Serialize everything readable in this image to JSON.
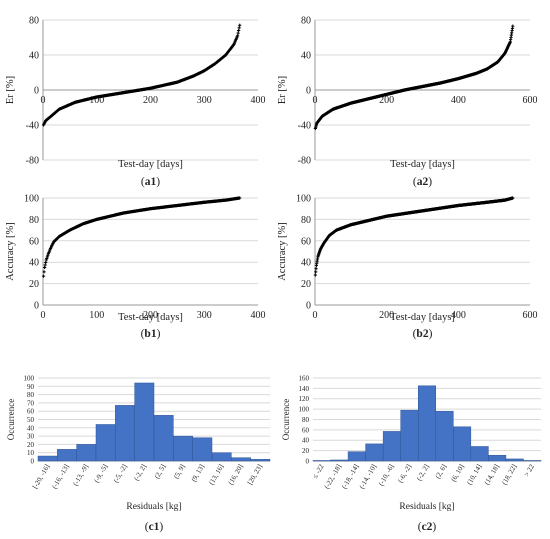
{
  "chart_data": [
    {
      "id": "a1",
      "type": "scatter",
      "panel_label": "(a1)",
      "xlabel": "Test-day [days]",
      "ylabel": "Er  [%]",
      "xlim": [
        0,
        400
      ],
      "ylim": [
        -80,
        80
      ],
      "xticks": [
        "0",
        "100",
        "200",
        "300",
        "400"
      ],
      "yticks": [
        "-80",
        "-40",
        "0",
        "40",
        "80"
      ],
      "grid": "horizontal",
      "marker": "+",
      "n_points": 366,
      "curve": [
        [
          1,
          -40
        ],
        [
          5,
          -35
        ],
        [
          15,
          -30
        ],
        [
          30,
          -22
        ],
        [
          60,
          -14
        ],
        [
          100,
          -8
        ],
        [
          150,
          -3
        ],
        [
          200,
          2
        ],
        [
          250,
          9
        ],
        [
          280,
          16
        ],
        [
          300,
          22
        ],
        [
          320,
          30
        ],
        [
          340,
          40
        ],
        [
          355,
          52
        ],
        [
          362,
          62
        ],
        [
          366,
          74
        ]
      ]
    },
    {
      "id": "a2",
      "type": "scatter",
      "panel_label": "(a2)",
      "xlabel": "Test-day [days]",
      "ylabel": "Er  [%]",
      "xlim": [
        0,
        600
      ],
      "ylim": [
        -80,
        80
      ],
      "xticks": [
        "0",
        "200",
        "400",
        "600"
      ],
      "yticks": [
        "-80",
        "-40",
        "0",
        "40",
        "80"
      ],
      "grid": "horizontal",
      "marker": "+",
      "n_points": 552,
      "curve": [
        [
          1,
          -44
        ],
        [
          5,
          -38
        ],
        [
          20,
          -30
        ],
        [
          50,
          -22
        ],
        [
          100,
          -15
        ],
        [
          150,
          -10
        ],
        [
          200,
          -5
        ],
        [
          250,
          0
        ],
        [
          300,
          4
        ],
        [
          350,
          8
        ],
        [
          400,
          13
        ],
        [
          450,
          19
        ],
        [
          480,
          24
        ],
        [
          510,
          32
        ],
        [
          530,
          42
        ],
        [
          545,
          55
        ],
        [
          552,
          73
        ]
      ]
    },
    {
      "id": "b1",
      "type": "scatter",
      "panel_label": "(b1)",
      "xlabel": "Test-day [days]",
      "ylabel": "Accuracy [%]",
      "xlim": [
        0,
        400
      ],
      "ylim": [
        0,
        100
      ],
      "xticks": [
        "0",
        "100",
        "200",
        "300",
        "400"
      ],
      "yticks": [
        "0",
        "20",
        "40",
        "60",
        "80",
        "100"
      ],
      "grid": "horizontal",
      "marker": "+",
      "n_points": 366,
      "curve": [
        [
          1,
          27
        ],
        [
          3,
          35
        ],
        [
          6,
          42
        ],
        [
          10,
          48
        ],
        [
          15,
          54
        ],
        [
          20,
          59
        ],
        [
          30,
          64
        ],
        [
          50,
          70
        ],
        [
          75,
          76
        ],
        [
          100,
          80
        ],
        [
          150,
          86
        ],
        [
          200,
          90
        ],
        [
          250,
          93
        ],
        [
          300,
          96
        ],
        [
          340,
          98
        ],
        [
          366,
          100
        ]
      ]
    },
    {
      "id": "b2",
      "type": "scatter",
      "panel_label": "(b2)",
      "xlabel": "Test-day [days]",
      "ylabel": "Accuracy [%]",
      "xlim": [
        0,
        600
      ],
      "ylim": [
        0,
        100
      ],
      "xticks": [
        "0",
        "200",
        "400",
        "600"
      ],
      "yticks": [
        "0",
        "20",
        "40",
        "60",
        "80",
        "100"
      ],
      "grid": "horizontal",
      "marker": "+",
      "n_points": 552,
      "curve": [
        [
          1,
          28
        ],
        [
          4,
          37
        ],
        [
          8,
          45
        ],
        [
          15,
          52
        ],
        [
          25,
          58
        ],
        [
          40,
          65
        ],
        [
          60,
          70
        ],
        [
          100,
          75
        ],
        [
          150,
          79
        ],
        [
          200,
          83
        ],
        [
          300,
          88
        ],
        [
          400,
          93
        ],
        [
          480,
          96
        ],
        [
          530,
          98
        ],
        [
          552,
          100
        ]
      ]
    },
    {
      "id": "c1",
      "type": "bar",
      "panel_label": "(c1)",
      "xlabel": "Residuals [kg]",
      "ylabel": "Occurrence",
      "ylim": [
        0,
        100
      ],
      "yticks": [
        "0",
        "10",
        "20",
        "30",
        "40",
        "50",
        "60",
        "70",
        "80",
        "90",
        "100"
      ],
      "grid": "horizontal",
      "categories": [
        "[-20, -16]",
        "(-16, -13]",
        "(-13, -9]",
        "(-9, -5]",
        "(-5, -2]",
        "(-2, 2]",
        "(2, 5]",
        "(5, 9]",
        "(9, 13]",
        "(13, 16]",
        "(16, 20]",
        "[20, 23]"
      ],
      "values": [
        6,
        14,
        20,
        44,
        67,
        94,
        55,
        30,
        28,
        10,
        4,
        2
      ]
    },
    {
      "id": "c2",
      "type": "bar",
      "panel_label": "(c2)",
      "xlabel": "Residuals [kg]",
      "ylabel": "Occurrence",
      "ylim": [
        0,
        160
      ],
      "yticks": [
        "0",
        "20",
        "40",
        "60",
        "80",
        "100",
        "120",
        "140",
        "160"
      ],
      "grid": "horizontal",
      "categories": [
        "≤ -22",
        "(-22, -18]",
        "(-18, -14]",
        "(-14, -10]",
        "(-10, -6]",
        "(-6, -2]",
        "(-2, 2]",
        "(2, 6]",
        "(6, 10]",
        "(10, 14]",
        "(14, 18]",
        "(18, 22]",
        "> 22"
      ],
      "values": [
        1,
        2,
        18,
        33,
        57,
        98,
        145,
        96,
        66,
        28,
        11,
        4,
        1
      ]
    }
  ]
}
